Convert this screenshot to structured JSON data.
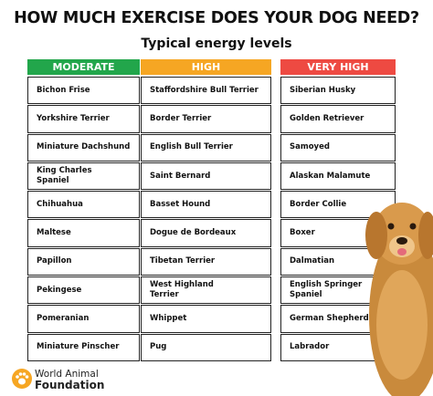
{
  "header": {
    "title": "HOW MUCH EXERCISE DOES YOUR DOG NEED?",
    "subtitle": "Typical energy levels"
  },
  "columns": [
    {
      "label": "MODERATE",
      "color": "#22a64b",
      "items": [
        "Bichon Frise",
        "Yorkshire Terrier",
        "Miniature Dachshund",
        "King Charles\n Spaniel",
        "Chihuahua",
        "Maltese",
        "Papillon",
        "Pekingese",
        "Pomeranian",
        "Miniature Pinscher"
      ]
    },
    {
      "label": "HIGH",
      "color": "#f6a623",
      "items": [
        "Staffordshire Bull Terrier",
        "Border Terrier",
        "English Bull Terrier",
        "Saint Bernard",
        "Basset Hound",
        "Dogue de Bordeaux",
        "Tibetan Terrier",
        "West Highland\nTerrier",
        "Whippet",
        "Pug"
      ]
    },
    {
      "label": "VERY HIGH",
      "color": "#ee4a42",
      "items": [
        "Siberian Husky",
        "Golden Retriever",
        "Samoyed",
        "Alaskan Malamute",
        "Border Collie",
        "Boxer",
        "Dalmatian",
        "English Springer\n Spaniel",
        "German Shepherd",
        "Labrador"
      ]
    }
  ],
  "footer": {
    "brand_line1": "World Animal",
    "brand_line2": "Foundation"
  }
}
